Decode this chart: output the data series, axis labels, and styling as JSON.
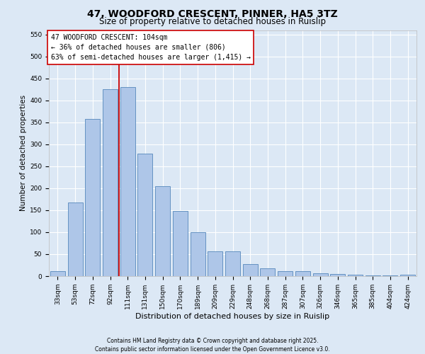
{
  "title1": "47, WOODFORD CRESCENT, PINNER, HA5 3TZ",
  "title2": "Size of property relative to detached houses in Ruislip",
  "xlabel": "Distribution of detached houses by size in Ruislip",
  "ylabel": "Number of detached properties",
  "categories": [
    "33sqm",
    "53sqm",
    "72sqm",
    "92sqm",
    "111sqm",
    "131sqm",
    "150sqm",
    "170sqm",
    "189sqm",
    "209sqm",
    "229sqm",
    "248sqm",
    "268sqm",
    "287sqm",
    "307sqm",
    "326sqm",
    "346sqm",
    "365sqm",
    "385sqm",
    "404sqm",
    "424sqm"
  ],
  "values": [
    12,
    168,
    357,
    425,
    430,
    278,
    204,
    148,
    100,
    57,
    57,
    27,
    18,
    12,
    12,
    7,
    5,
    3,
    2,
    1,
    3
  ],
  "bar_color": "#aec6e8",
  "bar_edge_color": "#5588bb",
  "vline_color": "#cc0000",
  "annotation_text": "47 WOODFORD CRESCENT: 104sqm\n← 36% of detached houses are smaller (806)\n63% of semi-detached houses are larger (1,415) →",
  "annotation_box_color": "#ffffff",
  "annotation_box_edge": "#cc0000",
  "ylim": [
    0,
    560
  ],
  "yticks": [
    0,
    50,
    100,
    150,
    200,
    250,
    300,
    350,
    400,
    450,
    500,
    550
  ],
  "bg_color": "#dce8f5",
  "plot_bg_color": "#dce8f5",
  "grid_color": "#ffffff",
  "footer_text": "Contains HM Land Registry data © Crown copyright and database right 2025.\nContains public sector information licensed under the Open Government Licence v3.0.",
  "title1_fontsize": 10,
  "title2_fontsize": 8.5,
  "xlabel_fontsize": 8,
  "ylabel_fontsize": 7.5,
  "tick_fontsize": 6.5,
  "annotation_fontsize": 7,
  "footer_fontsize": 5.5
}
